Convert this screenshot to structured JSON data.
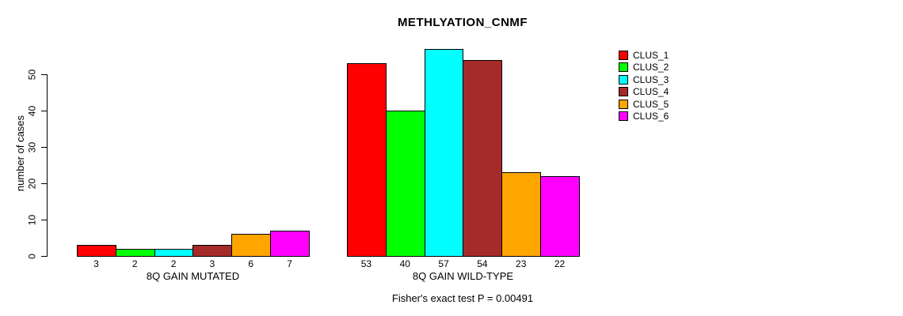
{
  "chart_data": {
    "type": "bar",
    "title": "METHLYATION_CNMF",
    "ylabel": "number of cases",
    "xlabel": "",
    "categories": [
      "8Q GAIN MUTATED",
      "8Q GAIN WILD-TYPE"
    ],
    "series": [
      {
        "name": "CLUS_1",
        "color": "#FF0000",
        "values": [
          3,
          53
        ]
      },
      {
        "name": "CLUS_2",
        "color": "#00FF00",
        "values": [
          2,
          40
        ]
      },
      {
        "name": "CLUS_3",
        "color": "#00FFFF",
        "values": [
          2,
          57
        ]
      },
      {
        "name": "CLUS_4",
        "color": "#A52A2A",
        "values": [
          3,
          54
        ]
      },
      {
        "name": "CLUS_5",
        "color": "#FFA500",
        "values": [
          6,
          23
        ]
      },
      {
        "name": "CLUS_6",
        "color": "#FF00FF",
        "values": [
          7,
          22
        ]
      }
    ],
    "bar_value_labels": [
      [
        "3",
        "2",
        "2",
        "3",
        "6",
        "7"
      ],
      [
        "53",
        "40",
        "57",
        "54",
        "23",
        "22"
      ]
    ],
    "yticks": [
      0,
      10,
      20,
      30,
      40,
      50
    ],
    "ylim": [
      0,
      57
    ],
    "grid": false,
    "legend_position": "right",
    "legend_entries": [
      "CLUS_1",
      "CLUS_2",
      "CLUS_3",
      "CLUS_4",
      "CLUS_5",
      "CLUS_6"
    ],
    "annotation": "Fisher's exact test P = 0.00491",
    "background_color": "#FFFFFF",
    "axis_color": "#000000"
  }
}
